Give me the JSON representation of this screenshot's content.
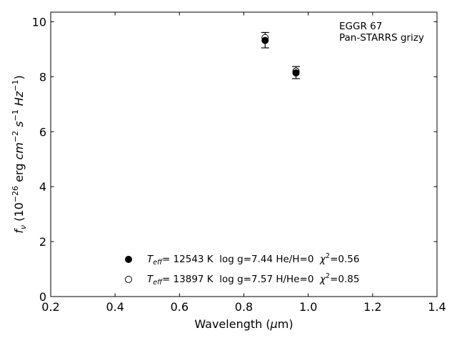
{
  "chart_data": {
    "type": "scatter",
    "xlabel": "Wavelength (μm)",
    "ylabel": "f_ν (10^-26 erg cm^-2 s^-1 Hz^-1)",
    "xlim": [
      0.2,
      1.4
    ],
    "ylim": [
      0,
      10.35
    ],
    "x_ticks": [
      "0.2",
      "0.4",
      "0.6",
      "0.8",
      "1.0",
      "1.2",
      "1.4"
    ],
    "y_ticks": [
      "0",
      "2",
      "4",
      "6",
      "8",
      "10"
    ],
    "grid": false,
    "annotation_lines": [
      "EGGR 67",
      "Pan-STARRS grizy"
    ],
    "observed": {
      "x": [
        0.866,
        0.962
      ],
      "y": [
        9.33,
        8.15
      ],
      "yerr": [
        0.28,
        0.22
      ]
    },
    "series": [
      {
        "marker": "filled-circle",
        "x": [
          0.866,
          0.962
        ],
        "y": [
          9.32,
          8.14
        ],
        "label": {
          "teff": "= 12543 K",
          "params": "log g=7.44  He/H=0",
          "chi2": "=0.56"
        }
      },
      {
        "marker": "open-circle",
        "x": [
          0.866,
          0.962
        ],
        "y": [
          9.42,
          8.2
        ],
        "label": {
          "teff": "= 13897 K",
          "params": "log g=7.57  H/He=0",
          "chi2": "=0.85"
        }
      }
    ],
    "legend_position": "lower-center"
  }
}
